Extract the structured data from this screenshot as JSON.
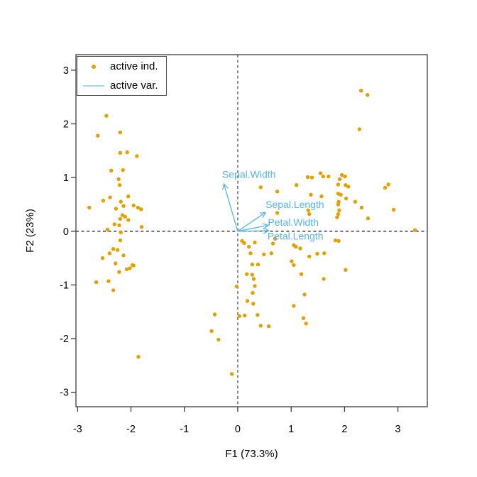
{
  "legend": {
    "entries": [
      {
        "label": "active ind.",
        "type": "point",
        "color": "#E69F00"
      },
      {
        "label": "active var.",
        "type": "line",
        "color": "#A8D8F0"
      }
    ]
  },
  "chart_data": {
    "type": "scatter",
    "title": "",
    "xlabel": "F1 (73.3%)",
    "ylabel": "F2 (23%)",
    "xlim": [
      -3.03,
      3.55
    ],
    "ylim": [
      -3.27,
      3.29
    ],
    "x_ticks": [
      -3,
      -2,
      -1,
      0,
      1,
      2,
      3
    ],
    "y_ticks": [
      -3,
      -2,
      -1,
      0,
      1,
      2,
      3
    ],
    "grid": false,
    "legend_position": "top-left",
    "reference_lines": [
      {
        "axis": "x",
        "value": 0,
        "style": "dashed",
        "color": "#7d7d7d"
      },
      {
        "axis": "y",
        "value": 0,
        "style": "dashed",
        "color": "#111111"
      }
    ],
    "series": [
      {
        "name": "active ind.",
        "marker": "circle",
        "color": "#E69F00",
        "points": [
          [
            -2.46,
            2.15
          ],
          [
            -2.62,
            1.78
          ],
          [
            -2.2,
            1.84
          ],
          [
            -2.2,
            1.46
          ],
          [
            -2.07,
            1.47
          ],
          [
            -1.89,
            1.4
          ],
          [
            -2.37,
            1.13
          ],
          [
            -2.15,
            1.14
          ],
          [
            -2.23,
            0.97
          ],
          [
            -2.21,
            0.86
          ],
          [
            -2.52,
            0.57
          ],
          [
            -2.39,
            0.63
          ],
          [
            -2.05,
            0.65
          ],
          [
            -2.78,
            0.44
          ],
          [
            -2.28,
            0.42
          ],
          [
            -2.19,
            0.55
          ],
          [
            -2.14,
            0.47
          ],
          [
            -1.95,
            0.48
          ],
          [
            -1.87,
            0.44
          ],
          [
            -1.81,
            0.41
          ],
          [
            -2.16,
            0.3
          ],
          [
            -2.11,
            0.27
          ],
          [
            -2.2,
            0.23
          ],
          [
            -2.05,
            0.21
          ],
          [
            -2.31,
            0.13
          ],
          [
            -2.22,
            0.11
          ],
          [
            -1.8,
            0.08
          ],
          [
            -2.44,
            0.03
          ],
          [
            -2.19,
            -0.02
          ],
          [
            -2.2,
            -0.17
          ],
          [
            -2.33,
            -0.33
          ],
          [
            -2.25,
            -0.35
          ],
          [
            -2.4,
            -0.41
          ],
          [
            -2.53,
            -0.5
          ],
          [
            -2.14,
            -0.45
          ],
          [
            -2.29,
            -0.6
          ],
          [
            -1.97,
            -0.63
          ],
          [
            -2.22,
            -0.76
          ],
          [
            -2.08,
            -0.71
          ],
          [
            -2.02,
            -0.69
          ],
          [
            -1.95,
            -0.64
          ],
          [
            -2.65,
            -0.95
          ],
          [
            -2.42,
            -0.93
          ],
          [
            -2.33,
            -1.1
          ],
          [
            -1.86,
            -2.34
          ],
          [
            2.31,
            2.62
          ],
          [
            2.43,
            2.54
          ],
          [
            2.28,
            1.9
          ],
          [
            0.43,
            0.82
          ],
          [
            0.74,
            0.74
          ],
          [
            1.1,
            0.86
          ],
          [
            1.31,
            1.01
          ],
          [
            1.39,
            1.0
          ],
          [
            1.55,
            1.08
          ],
          [
            1.6,
            1.02
          ],
          [
            1.7,
            1.02
          ],
          [
            1.95,
            1.05
          ],
          [
            2.01,
            1.02
          ],
          [
            1.91,
            0.97
          ],
          [
            1.88,
            0.87
          ],
          [
            2.02,
            0.86
          ],
          [
            2.07,
            0.83
          ],
          [
            2.76,
            0.81
          ],
          [
            2.82,
            0.87
          ],
          [
            1.37,
            0.68
          ],
          [
            1.57,
            0.65
          ],
          [
            1.88,
            0.7
          ],
          [
            1.93,
            0.68
          ],
          [
            2.03,
            0.61
          ],
          [
            1.89,
            0.55
          ],
          [
            2.2,
            0.55
          ],
          [
            1.88,
            0.5
          ],
          [
            0.74,
            0.34
          ],
          [
            1.32,
            0.39
          ],
          [
            1.34,
            0.32
          ],
          [
            2.32,
            0.44
          ],
          [
            2.92,
            0.4
          ],
          [
            1.9,
            0.39
          ],
          [
            1.88,
            0.32
          ],
          [
            1.86,
            0.26
          ],
          [
            2.44,
            0.24
          ],
          [
            3.32,
            0.02
          ],
          [
            0.08,
            -0.18
          ],
          [
            0.12,
            -0.22
          ],
          [
            0.32,
            -0.21
          ],
          [
            0.21,
            -0.29
          ],
          [
            0.24,
            -0.41
          ],
          [
            0.49,
            -0.43
          ],
          [
            0.63,
            -0.41
          ],
          [
            0.7,
            -0.14
          ],
          [
            0.66,
            -0.23
          ],
          [
            1.05,
            -0.26
          ],
          [
            1.09,
            -0.29
          ],
          [
            1.17,
            -0.32
          ],
          [
            1.83,
            -0.17
          ],
          [
            1.89,
            -0.18
          ],
          [
            1.49,
            -0.42
          ],
          [
            1.62,
            -0.41
          ],
          [
            1.34,
            -0.47
          ],
          [
            1.01,
            -0.56
          ],
          [
            1.05,
            -0.63
          ],
          [
            1.19,
            -0.8
          ],
          [
            0.27,
            -0.62
          ],
          [
            0.38,
            -0.62
          ],
          [
            0.17,
            -0.8
          ],
          [
            0.27,
            -0.81
          ],
          [
            0.3,
            -0.89
          ],
          [
            -0.02,
            -1.03
          ],
          [
            0.32,
            -1.02
          ],
          [
            2.02,
            -0.72
          ],
          [
            1.61,
            -0.89
          ],
          [
            0.28,
            -1.15
          ],
          [
            0.18,
            -1.3
          ],
          [
            0.29,
            -1.35
          ],
          [
            1.25,
            -1.18
          ],
          [
            1.05,
            -1.39
          ],
          [
            -0.43,
            -1.55
          ],
          [
            0.03,
            -1.58
          ],
          [
            0.13,
            -1.57
          ],
          [
            0.37,
            -1.56
          ],
          [
            0.43,
            -1.76
          ],
          [
            0.58,
            -1.77
          ],
          [
            1.23,
            -1.62
          ],
          [
            1.28,
            -1.72
          ],
          [
            -0.49,
            -1.86
          ],
          [
            -0.36,
            -2.02
          ],
          [
            -0.11,
            -2.66
          ]
        ]
      }
    ],
    "variables": {
      "color": "#56B4E9",
      "arrows": [
        {
          "name": "Sepal.Width",
          "x": -0.26,
          "y": 0.88,
          "label_x": 0.21,
          "label_y": 1.06
        },
        {
          "name": "Sepal.Length",
          "x": 0.52,
          "y": 0.35,
          "label_x": 1.07,
          "label_y": 0.5
        },
        {
          "name": "Petal.Width",
          "x": 0.57,
          "y": 0.11,
          "label_x": 1.04,
          "label_y": 0.17
        },
        {
          "name": "Petal.Length",
          "x": 0.58,
          "y": 0.01,
          "label_x": 1.08,
          "label_y": -0.09
        }
      ]
    }
  }
}
